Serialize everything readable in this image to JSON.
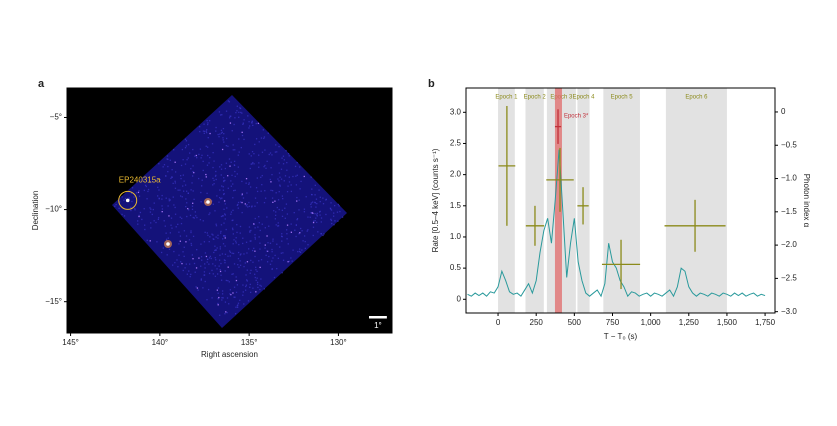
{
  "chart_data": [
    {
      "type": "image",
      "panel": "a",
      "xlabel": "Right ascension",
      "ylabel": "Declination",
      "xlim": [
        145.2,
        127.0
      ],
      "ylim": [
        -16.7,
        -3.4
      ],
      "xticks": [
        {
          "value": 145,
          "label": "145°"
        },
        {
          "value": 140,
          "label": "140°"
        },
        {
          "value": 135,
          "label": "135°"
        },
        {
          "value": 130,
          "label": "130°"
        }
      ],
      "yticks": [
        {
          "value": -5,
          "label": "−5°"
        },
        {
          "value": -10,
          "label": "−10°"
        },
        {
          "value": -15,
          "label": "−15°"
        }
      ],
      "annotation": {
        "text": "EP240315a",
        "x": 141.8,
        "y": -9.5,
        "color": "#e8b830"
      },
      "scale_bar": {
        "label": "1°",
        "length": 1
      }
    },
    {
      "type": "line",
      "panel": "b",
      "xlabel": "T − T₀ (s)",
      "ylabel": "Rate [0.5–4 keV] (counts s⁻¹)",
      "y2label": "Photon index α",
      "xlim": [
        -210,
        1815
      ],
      "ylim": [
        -0.22,
        3.39
      ],
      "y2lim": [
        -3.02,
        0.36
      ],
      "xticks": [
        0,
        250,
        500,
        750,
        {
          "value": 1000,
          "label": "1,000"
        },
        {
          "value": 1250,
          "label": "1,250"
        },
        {
          "value": 1500,
          "label": "1,500"
        },
        {
          "value": 1750,
          "label": "1,750"
        }
      ],
      "yticks": [
        0,
        0.5,
        {
          "value": 1,
          "label": "1.0"
        },
        1.5,
        {
          "value": 2,
          "label": "2.0"
        },
        2.5,
        {
          "value": 3,
          "label": "3.0"
        }
      ],
      "y2ticks": [
        0,
        {
          "value": -0.5,
          "label": "−0.5"
        },
        {
          "value": -1,
          "label": "−1.0"
        },
        {
          "value": -1.5,
          "label": "−1.5"
        },
        {
          "value": -2,
          "label": "−2.0"
        },
        {
          "value": -2.5,
          "label": "−2.5"
        },
        {
          "value": -3,
          "label": "−3.0"
        }
      ],
      "epochs": [
        {
          "label": "Epoch 1",
          "range": [
            0,
            110
          ]
        },
        {
          "label": "Epoch 2",
          "range": [
            180,
            300
          ]
        },
        {
          "label": "Epoch 3",
          "range": [
            320,
            510
          ]
        },
        {
          "label": "Epoch 4",
          "range": [
            520,
            600
          ]
        },
        {
          "label": "Epoch 5",
          "range": [
            690,
            930
          ]
        },
        {
          "label": "Epoch 6",
          "range": [
            1100,
            1500
          ]
        }
      ],
      "highlight": {
        "label": "Epoch 3*",
        "range": [
          373,
          419
        ],
        "color": "#e06a6a"
      },
      "x": [
        -200,
        -175,
        -150,
        -125,
        -100,
        -75,
        -50,
        -25,
        0,
        25,
        50,
        75,
        100,
        125,
        150,
        175,
        200,
        225,
        250,
        275,
        300,
        325,
        350,
        375,
        400,
        425,
        450,
        475,
        500,
        525,
        550,
        575,
        600,
        625,
        650,
        675,
        700,
        725,
        750,
        775,
        800,
        825,
        850,
        875,
        900,
        925,
        950,
        975,
        1000,
        1025,
        1050,
        1075,
        1100,
        1125,
        1150,
        1175,
        1200,
        1225,
        1250,
        1275,
        1300,
        1325,
        1350,
        1375,
        1400,
        1425,
        1450,
        1475,
        1500,
        1525,
        1550,
        1575,
        1600,
        1625,
        1650,
        1675,
        1700,
        1725,
        1750
      ],
      "series": [
        {
          "color": "#2a9a9c",
          "values": [
            0.08,
            0.05,
            0.1,
            0.06,
            0.1,
            0.05,
            0.12,
            0.1,
            0.2,
            0.45,
            0.3,
            0.12,
            0.08,
            0.1,
            0.05,
            0.15,
            0.25,
            0.1,
            0.3,
            0.75,
            1.1,
            1.3,
            0.9,
            1.6,
            2.4,
            1.4,
            0.35,
            0.9,
            1.3,
            0.6,
            0.3,
            0.1,
            0.05,
            0.1,
            0.15,
            0.05,
            0.25,
            0.9,
            0.6,
            0.5,
            0.3,
            0.2,
            0.05,
            0.12,
            0.1,
            0.05,
            0.08,
            0.1,
            0.05,
            0.1,
            0.08,
            0.05,
            0.1,
            0.15,
            0.05,
            0.2,
            0.5,
            0.45,
            0.2,
            0.1,
            0.05,
            0.1,
            0.08,
            0.05,
            0.1,
            0.08,
            0.05,
            0.1,
            0.08,
            0.05,
            0.1,
            0.06,
            0.1,
            0.05,
            0.08,
            0.1,
            0.05,
            0.08,
            0.06
          ]
        }
      ],
      "photon_index": [
        {
          "x": 58,
          "xerr": 55,
          "y": -0.81,
          "yerr": 0.9,
          "color": "#8b8a1a"
        },
        {
          "x": 242,
          "xerr": 60,
          "y": -1.71,
          "yerr": 0.3,
          "color": "#8b8a1a"
        },
        {
          "x": 406,
          "xerr": 90,
          "y": -1.02,
          "yerr": 0.48,
          "color": "#8b8a1a"
        },
        {
          "x": 393,
          "xerr": 20,
          "y": -0.22,
          "yerr": 0.26,
          "color": "#c0303a"
        },
        {
          "x": 557,
          "xerr": 37,
          "y": -1.41,
          "yerr": 0.28,
          "color": "#8b8a1a"
        },
        {
          "x": 806,
          "xerr": 125,
          "y": -2.29,
          "yerr": 0.37,
          "color": "#8b8a1a"
        },
        {
          "x": 1291,
          "xerr": 200,
          "y": -1.71,
          "yerr": 0.39,
          "color": "#8b8a1a"
        }
      ]
    }
  ]
}
